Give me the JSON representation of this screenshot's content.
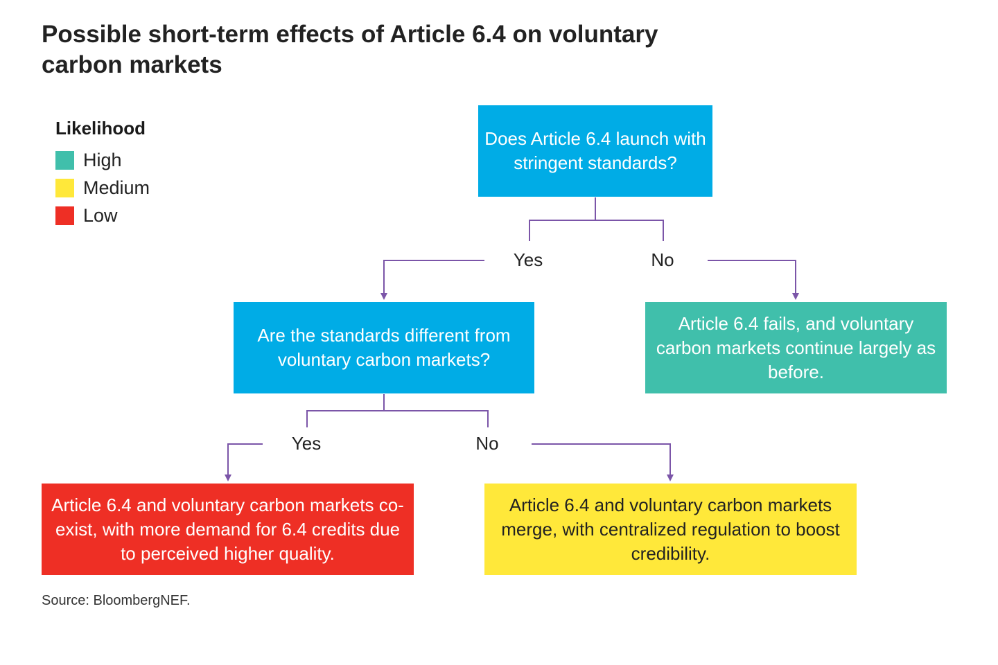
{
  "title": "Possible short-term effects of Article 6.4 on voluntary carbon markets",
  "legend": {
    "title": "Likelihood",
    "items": [
      {
        "label": "High",
        "color": "#40bfab"
      },
      {
        "label": "Medium",
        "color": "#ffe83a"
      },
      {
        "label": "Low",
        "color": "#ee2f25"
      }
    ]
  },
  "nodes": {
    "q1": {
      "text": "Does Article 6.4 launch with stringent standards?",
      "color": "#00ace6"
    },
    "q2": {
      "text": "Are the standards different from voluntary carbon markets?",
      "color": "#00ace6"
    },
    "outcome_fails": {
      "text": "Article 6.4 fails, and voluntary carbon markets continue largely as before.",
      "likelihood": "High"
    },
    "outcome_coexist": {
      "text": "Article 6.4 and voluntary carbon markets co-exist, with more demand for 6.4 credits due to perceived higher quality.",
      "likelihood": "Low"
    },
    "outcome_merge": {
      "text": "Article 6.4 and voluntary carbon markets merge, with centralized regulation to boost credibility.",
      "likelihood": "Medium"
    }
  },
  "branches": {
    "q1_yes": "Yes",
    "q1_no": "No",
    "q2_yes": "Yes",
    "q2_no": "No"
  },
  "connector_color": "#7b55a8",
  "source": "Source: BloombergNEF."
}
